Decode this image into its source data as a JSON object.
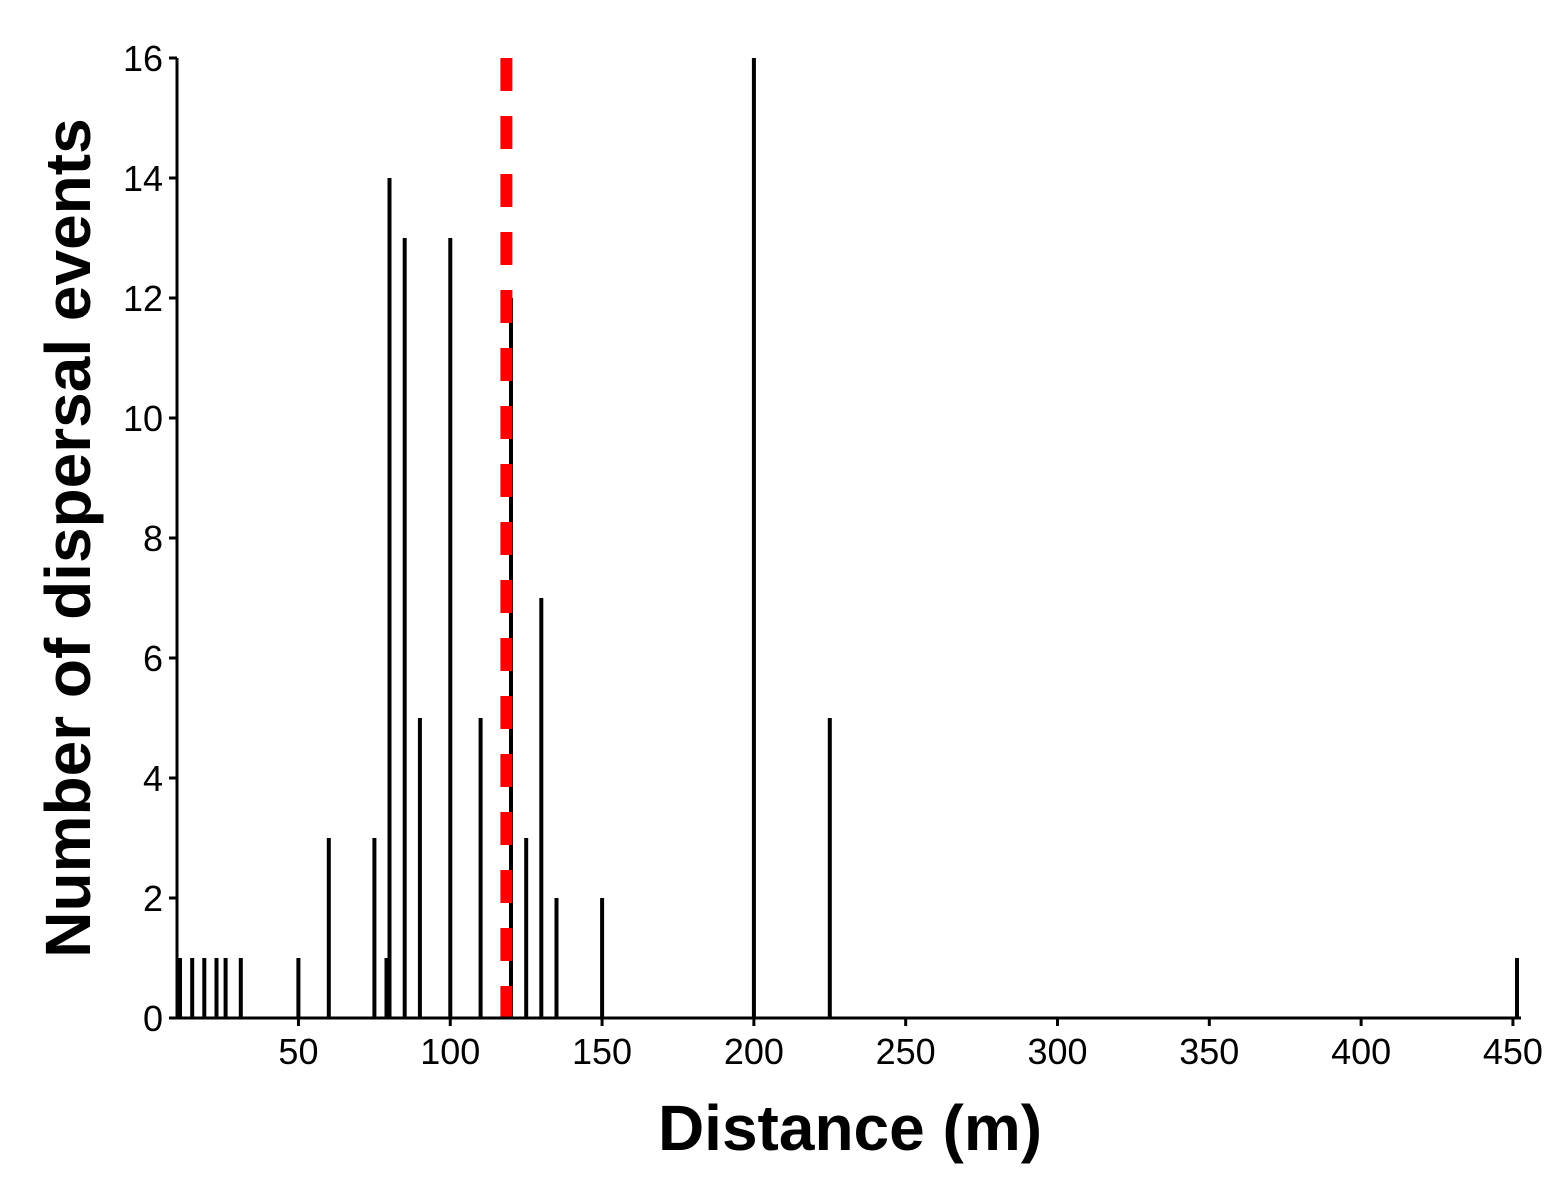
{
  "chart_data": {
    "type": "bar",
    "xlabel": "Distance (m)",
    "ylabel": "Number of dispersal events",
    "xlim": [
      10,
      452
    ],
    "ylim": [
      0,
      16
    ],
    "x_ticks": [
      50,
      100,
      150,
      200,
      250,
      300,
      350,
      400,
      450
    ],
    "y_ticks": [
      0,
      2,
      4,
      6,
      8,
      10,
      12,
      14,
      16
    ],
    "grid": false,
    "bars": [
      {
        "x": 11,
        "y": 1
      },
      {
        "x": 15,
        "y": 1
      },
      {
        "x": 19,
        "y": 1
      },
      {
        "x": 23,
        "y": 1
      },
      {
        "x": 26,
        "y": 1
      },
      {
        "x": 31,
        "y": 1
      },
      {
        "x": 50,
        "y": 1
      },
      {
        "x": 60,
        "y": 3
      },
      {
        "x": 75,
        "y": 3
      },
      {
        "x": 79,
        "y": 1
      },
      {
        "x": 80,
        "y": 14
      },
      {
        "x": 85,
        "y": 13
      },
      {
        "x": 90,
        "y": 5
      },
      {
        "x": 100,
        "y": 13
      },
      {
        "x": 110,
        "y": 5
      },
      {
        "x": 120,
        "y": 12
      },
      {
        "x": 125,
        "y": 3
      },
      {
        "x": 130,
        "y": 7
      },
      {
        "x": 135,
        "y": 2
      },
      {
        "x": 150,
        "y": 2
      },
      {
        "x": 200,
        "y": 16
      },
      {
        "x": 225,
        "y": 5
      },
      {
        "x": 452,
        "y": 1
      }
    ],
    "reference_line": {
      "x": 118.5,
      "style": "dashed",
      "color": "#ff0000"
    },
    "bar_color": "#000000"
  }
}
